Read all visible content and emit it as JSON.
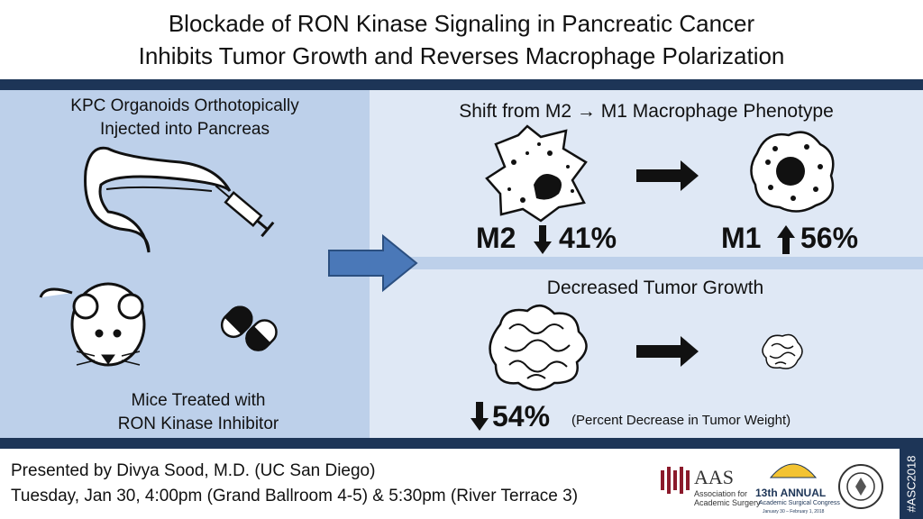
{
  "header": {
    "title_lines": [
      "Blockade of RON Kinase Signaling in Pancreatic Cancer",
      "Inhibits Tumor Growth and Reverses Macrophage Polarization"
    ]
  },
  "left_panel": {
    "top_text": [
      "KPC Organoids Orthotopically",
      "Injected into Pancreas"
    ],
    "bottom_text": [
      "Mice Treated with",
      "RON Kinase Inhibitor"
    ]
  },
  "macrophage": {
    "heading": "Shift from M2 → M1 Macrophage Phenotype",
    "m2_label": "M2",
    "m2_change": "41%",
    "m1_label": "M1",
    "m1_change": "56%"
  },
  "tumor": {
    "heading": "Decreased Tumor Growth",
    "change": "54%",
    "note": "(Percent Decrease in Tumor Weight)"
  },
  "footer": {
    "presenter": "Presented by Divya Sood, M.D. (UC San Diego)",
    "schedule": "Tuesday, Jan 30, 4:00pm (Grand Ballroom 4-5) & 5:30pm (River Terrace 3)",
    "aas_logo": {
      "name": "AAS",
      "line1": "Association for",
      "line2": "Academic Surgery"
    },
    "asc_logo": {
      "edition": "13th ANNUAL",
      "name": "Academic Surgical Congress",
      "dates": "January 30 – February 1, 2018"
    },
    "hashtag": "#ASC2018"
  }
}
